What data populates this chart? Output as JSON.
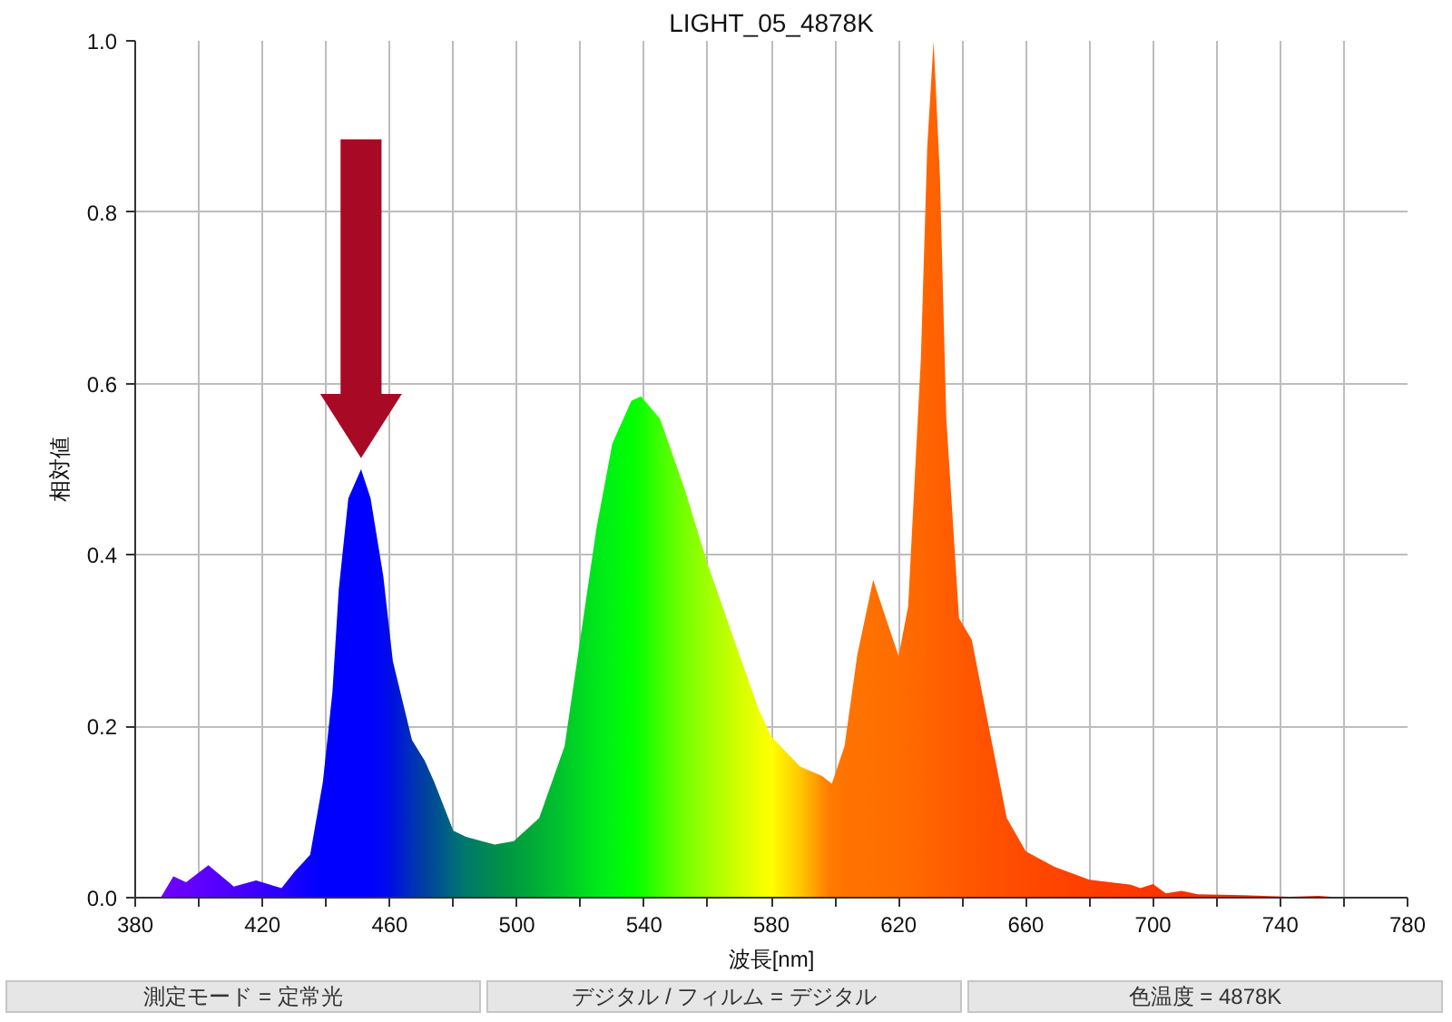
{
  "chart_data": {
    "type": "area",
    "title": "LIGHT_05_4878K",
    "xlabel": "波長[nm]",
    "ylabel": "相対値",
    "x": [
      388,
      392,
      396,
      403,
      411,
      418,
      426,
      430,
      435,
      439,
      442,
      444,
      447,
      451,
      454,
      458,
      461,
      467,
      471,
      474,
      480,
      484,
      493,
      499,
      507,
      515,
      520,
      525,
      530,
      536,
      539,
      545,
      553,
      560,
      568,
      576,
      580,
      589,
      596,
      599,
      603,
      607,
      612,
      616,
      620,
      623,
      627,
      629,
      631,
      633,
      635,
      639,
      643,
      648,
      654,
      660,
      669,
      680,
      693,
      696,
      700,
      704,
      709,
      714,
      728,
      743,
      752,
      760
    ],
    "values": [
      0,
      0.025,
      0.018,
      0.038,
      0.013,
      0.02,
      0.011,
      0.03,
      0.05,
      0.135,
      0.24,
      0.36,
      0.466,
      0.5,
      0.466,
      0.375,
      0.276,
      0.184,
      0.16,
      0.135,
      0.078,
      0.071,
      0.062,
      0.066,
      0.093,
      0.177,
      0.304,
      0.431,
      0.53,
      0.58,
      0.585,
      0.559,
      0.474,
      0.389,
      0.304,
      0.22,
      0.188,
      0.153,
      0.142,
      0.133,
      0.177,
      0.283,
      0.371,
      0.326,
      0.282,
      0.34,
      0.629,
      0.876,
      1.0,
      0.841,
      0.559,
      0.326,
      0.301,
      0.206,
      0.093,
      0.054,
      0.036,
      0.021,
      0.015,
      0.011,
      0.016,
      0.005,
      0.008,
      0.004,
      0.003,
      0.001,
      0.002,
      0
    ],
    "colors": [
      "#7000ff",
      "#6a00ff",
      "#6600ff",
      "#5a00ff",
      "#4c00ff",
      "#3c00ff",
      "#2800ff",
      "#1800ff",
      "#0800ff",
      "#0000ff",
      "#0000ff",
      "#0000ff",
      "#0000ff",
      "#0000ff",
      "#0000ff",
      "#0008f0",
      "#0010e0",
      "#0030b8",
      "#00409f",
      "#004d94",
      "#006a7a",
      "#00786a",
      "#008c4c",
      "#009a40",
      "#00b035",
      "#00c82a",
      "#00d822",
      "#00e81a",
      "#00f412",
      "#00ff00",
      "#10ff00",
      "#40ff00",
      "#78ff00",
      "#a0ff00",
      "#c8ff00",
      "#eeff00",
      "#ffff00",
      "#ffc800",
      "#ff8c00",
      "#ff7800",
      "#ff7400",
      "#ff7200",
      "#ff7000",
      "#ff6e00",
      "#ff6c00",
      "#ff6a00",
      "#ff6600",
      "#ff6400",
      "#ff6200",
      "#ff6000",
      "#ff5e00",
      "#ff5a00",
      "#ff5600",
      "#ff5200",
      "#ff4e00",
      "#ff4a00",
      "#ff4400",
      "#ff3e00",
      "#ff3800",
      "#ff3600",
      "#ff3400",
      "#ff3200",
      "#ff3000",
      "#ff2e00",
      "#ff2a00",
      "#ff2600",
      "#ff2400",
      "#ff2200"
    ],
    "xlim": [
      380,
      780
    ],
    "xticks": [
      380,
      {
        "value": 400,
        "label": null
      },
      420,
      {
        "value": 440,
        "label": null
      },
      460,
      {
        "value": 480,
        "label": null
      },
      500,
      {
        "value": 520,
        "label": null
      },
      540,
      {
        "value": 560,
        "label": null
      },
      580,
      {
        "value": 600,
        "label": null
      },
      620,
      {
        "value": 640,
        "label": null
      },
      660,
      {
        "value": 680,
        "label": null
      },
      700,
      {
        "value": 720,
        "label": null
      },
      740,
      {
        "value": 760,
        "label": null
      },
      780
    ],
    "ylim": [
      0,
      1
    ],
    "yticks": [
      {
        "value": 0,
        "label": "0.0"
      },
      0.2,
      0.4,
      0.6,
      0.8,
      {
        "value": 1,
        "label": "1.0"
      }
    ],
    "grid": true,
    "annotations": [
      "測定モード = 定常光",
      "デジタル / フィルム = デジタル",
      "色温度 = 4878K"
    ]
  }
}
